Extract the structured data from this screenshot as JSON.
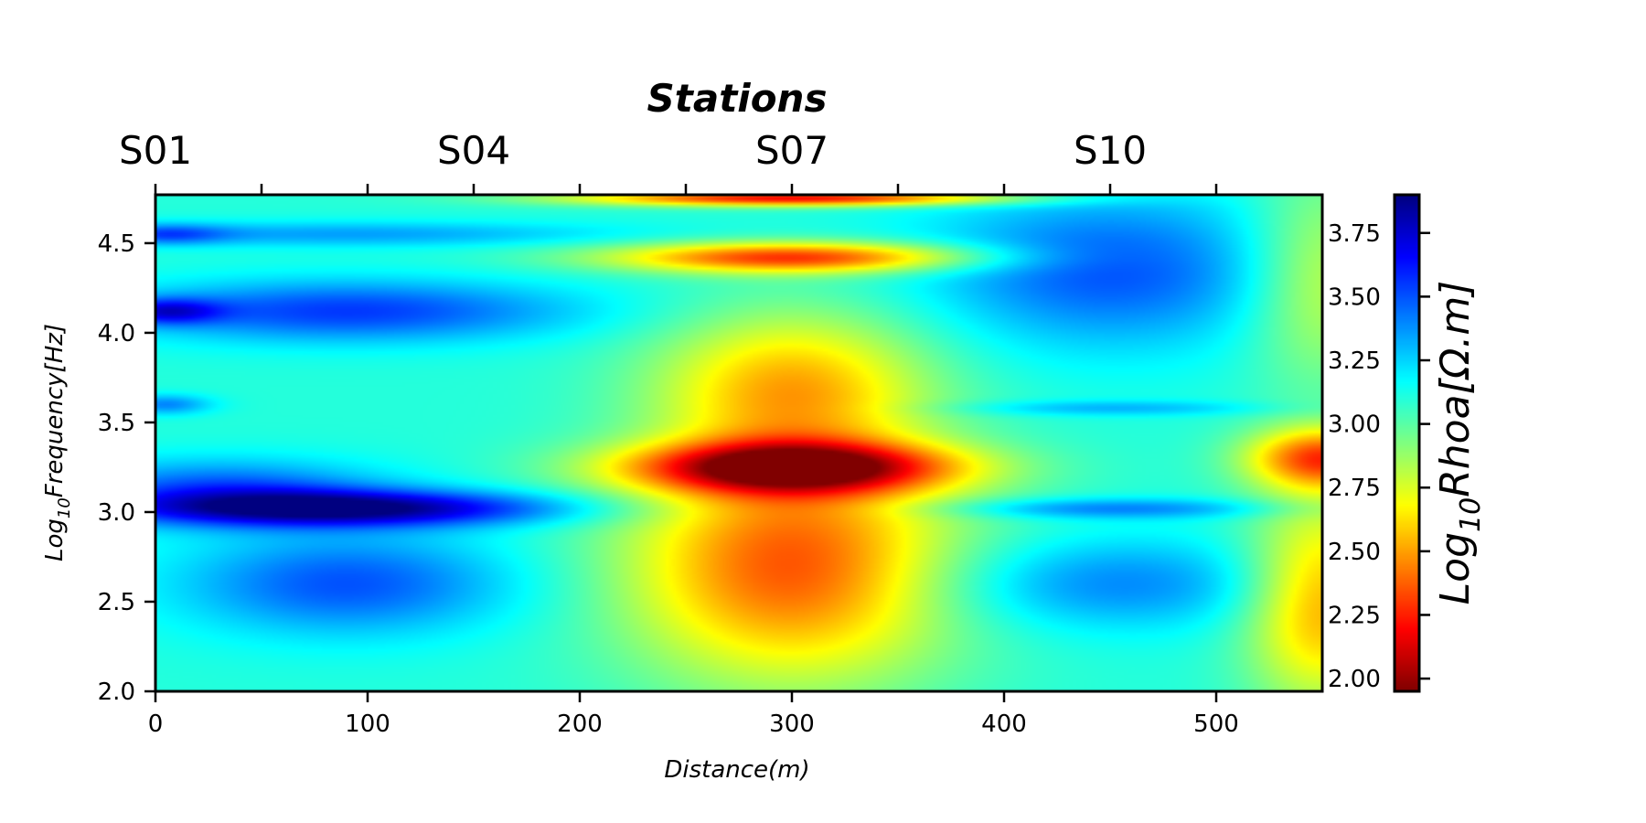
{
  "chart_data": {
    "type": "heatmap",
    "title": "Stations",
    "xlabel": "Distance(m)",
    "ylabel": {
      "base": "Log",
      "sub": "10",
      "rest": "Frequency[Hz]"
    },
    "xlim": [
      0,
      550
    ],
    "ylim": [
      2.0,
      4.77
    ],
    "x_ticks": [
      0,
      100,
      200,
      300,
      400,
      500
    ],
    "x_tick_labels": [
      "0",
      "100",
      "200",
      "300",
      "400",
      "500"
    ],
    "x_minor_ticks_top": [
      0,
      50,
      100,
      150,
      200,
      250,
      300,
      350,
      400,
      450,
      500
    ],
    "y_ticks": [
      2.0,
      2.5,
      3.0,
      3.5,
      4.0,
      4.5
    ],
    "y_tick_labels": [
      "2.0",
      "2.5",
      "3.0",
      "3.5",
      "4.0",
      "4.5"
    ],
    "stations": [
      {
        "label": "S01",
        "x": 0
      },
      {
        "label": "S04",
        "x": 150
      },
      {
        "label": "S07",
        "x": 300
      },
      {
        "label": "S10",
        "x": 450
      }
    ],
    "colorbar": {
      "label": {
        "base": "Log",
        "sub": "10",
        "rest": "Rhoa[Ω.m]"
      },
      "colormap": "jet_r",
      "range": [
        1.95,
        3.9
      ],
      "ticks": [
        2.0,
        2.25,
        2.5,
        2.75,
        3.0,
        3.25,
        3.5,
        3.75
      ],
      "tick_labels": [
        "2.00",
        "2.25",
        "2.50",
        "2.75",
        "3.00",
        "3.25",
        "3.50",
        "3.75"
      ]
    },
    "field_description": {
      "background": 3.1,
      "blobs": [
        {
          "x": 90,
          "y": 3.02,
          "sx": 70,
          "sy": 0.07,
          "v": 0.75
        },
        {
          "x": 30,
          "y": 3.12,
          "sx": 55,
          "sy": 0.12,
          "v": 0.4
        },
        {
          "x": 90,
          "y": 2.6,
          "sx": 55,
          "sy": 0.2,
          "v": 0.4
        },
        {
          "x": 90,
          "y": 4.12,
          "sx": 75,
          "sy": 0.12,
          "v": 0.45
        },
        {
          "x": 5,
          "y": 4.12,
          "sx": 18,
          "sy": 0.05,
          "v": 0.45
        },
        {
          "x": 5,
          "y": 3.6,
          "sx": 15,
          "sy": 0.04,
          "v": 0.3
        },
        {
          "x": 5,
          "y": 4.55,
          "sx": 20,
          "sy": 0.04,
          "v": 0.3
        },
        {
          "x": 90,
          "y": 4.55,
          "sx": 90,
          "sy": 0.05,
          "v": 0.25
        },
        {
          "x": 300,
          "y": 2.7,
          "sx": 55,
          "sy": 0.45,
          "v": -0.75
        },
        {
          "x": 300,
          "y": 3.25,
          "sx": 55,
          "sy": 0.1,
          "v": -1.0
        },
        {
          "x": 300,
          "y": 3.7,
          "sx": 45,
          "sy": 0.3,
          "v": -0.55
        },
        {
          "x": 300,
          "y": 4.42,
          "sx": 60,
          "sy": 0.06,
          "v": -0.8
        },
        {
          "x": 300,
          "y": 4.75,
          "sx": 70,
          "sy": 0.03,
          "v": -0.9
        },
        {
          "x": 450,
          "y": 4.35,
          "sx": 60,
          "sy": 0.3,
          "v": 0.4
        },
        {
          "x": 450,
          "y": 2.6,
          "sx": 60,
          "sy": 0.18,
          "v": 0.3
        },
        {
          "x": 450,
          "y": 3.02,
          "sx": 55,
          "sy": 0.04,
          "v": 0.3
        },
        {
          "x": 450,
          "y": 3.58,
          "sx": 50,
          "sy": 0.03,
          "v": 0.2
        },
        {
          "x": 550,
          "y": 3.3,
          "sx": 25,
          "sy": 0.12,
          "v": -0.75
        },
        {
          "x": 550,
          "y": 2.5,
          "sx": 25,
          "sy": 0.4,
          "v": -0.6
        },
        {
          "x": 550,
          "y": 4.3,
          "sx": 25,
          "sy": 0.4,
          "v": -0.35
        }
      ]
    }
  }
}
